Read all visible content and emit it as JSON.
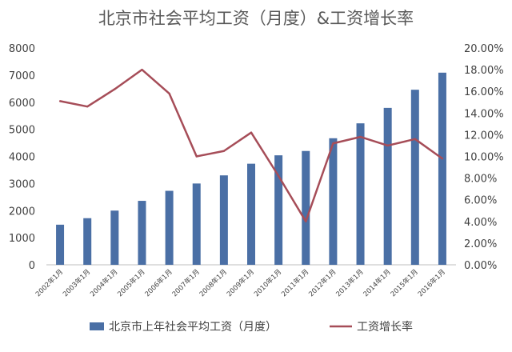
{
  "chart_data": {
    "type": "bar",
    "title": "北京市社会平均工资（月度）&工资增长率",
    "categories": [
      "2002年1月",
      "2003年1月",
      "2004年1月",
      "2005年1月",
      "2006年1月",
      "2007年1月",
      "2008年1月",
      "2009年1月",
      "2010年1月",
      "2011年1月",
      "2012年1月",
      "2013年1月",
      "2014年1月",
      "2015年1月",
      "2016年1月"
    ],
    "series": [
      {
        "name": "北京市上年社会平均工资（月度）",
        "type": "bar",
        "axis": "left",
        "color": "#4a6fa5",
        "values": [
          1480,
          1720,
          2000,
          2360,
          2730,
          3000,
          3300,
          3730,
          4040,
          4200,
          4670,
          5220,
          5790,
          6460,
          7090
        ]
      },
      {
        "name": "工资增长率",
        "type": "line",
        "axis": "right",
        "color": "#a64d58",
        "values": [
          15.1,
          14.6,
          16.2,
          18.0,
          15.8,
          10.0,
          10.5,
          12.2,
          8.2,
          4.0,
          11.2,
          11.8,
          11.0,
          11.6,
          9.8
        ]
      }
    ],
    "y_left": {
      "ylim": [
        0,
        8000
      ],
      "ticks": [
        "0",
        "1000",
        "2000",
        "3000",
        "4000",
        "5000",
        "6000",
        "7000",
        "8000"
      ]
    },
    "y_right": {
      "ylim": [
        0,
        20
      ],
      "ticks": [
        "0.00%",
        "2.00%",
        "4.00%",
        "6.00%",
        "8.00%",
        "10.00%",
        "12.00%",
        "14.00%",
        "16.00%",
        "18.00%",
        "20.00%"
      ]
    },
    "grid": false,
    "legend": "bottom"
  }
}
